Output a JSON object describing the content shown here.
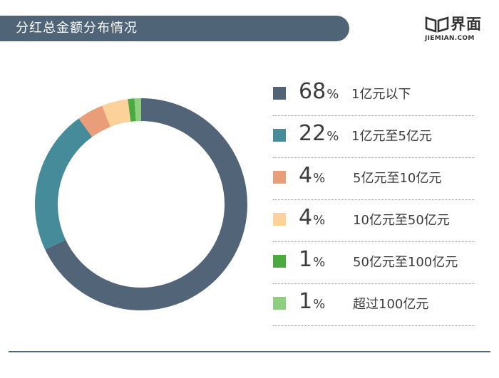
{
  "header": {
    "title": "分红总金额分布情况"
  },
  "logo": {
    "name": "界面",
    "sub": "JIEMIAN.COM"
  },
  "chart_data": {
    "type": "pie",
    "title": "分红总金额分布情况",
    "donut": true,
    "categories": [
      "1亿元以下",
      "1亿元至5亿元",
      "5亿元至10亿元",
      "10亿元至50亿元",
      "50亿元至100亿元",
      "超过100亿元"
    ],
    "values": [
      68,
      22,
      4,
      4,
      1,
      1
    ],
    "value_labels": [
      "68",
      "22",
      "4",
      "4",
      "1",
      "1"
    ],
    "unit": "%",
    "colors": [
      "#526477",
      "#468b99",
      "#e99d78",
      "#fdd29a",
      "#4aa93f",
      "#8ece7f"
    ],
    "legend_position": "right"
  }
}
